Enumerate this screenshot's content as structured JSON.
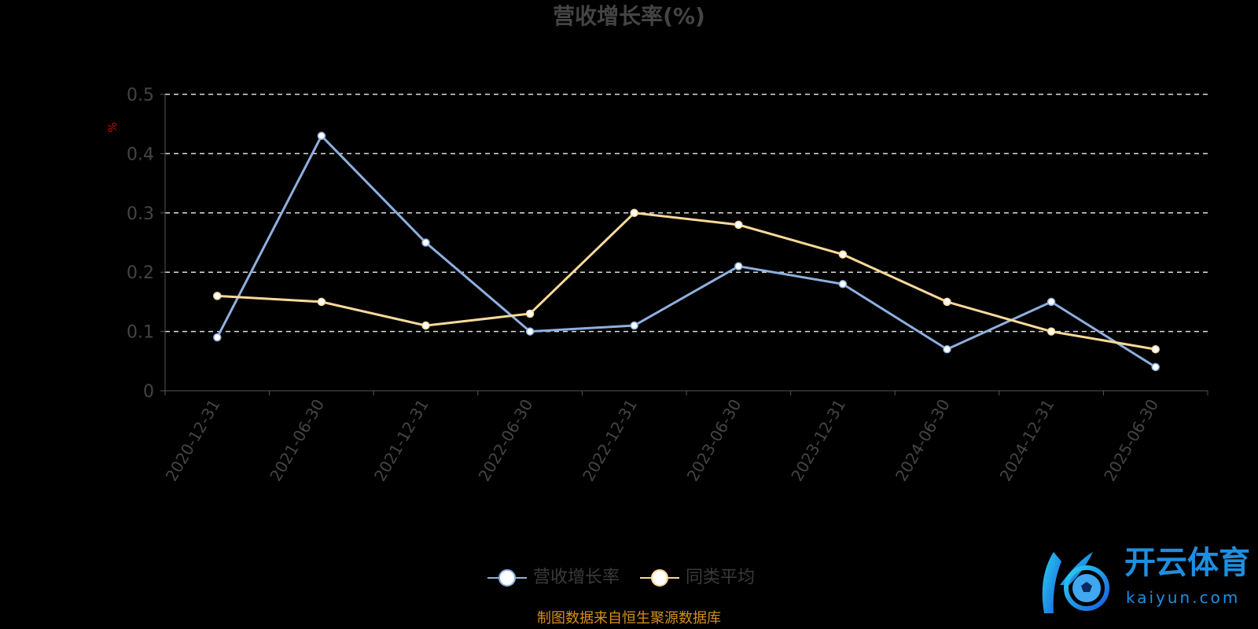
{
  "chart_data": {
    "type": "line",
    "title": "营收增长率(%)",
    "ylabel": "%",
    "xlabel": "",
    "ylim": [
      0,
      0.5
    ],
    "yticks": [
      "0",
      "0.1",
      "0.2",
      "0.3",
      "0.4",
      "0.5"
    ],
    "grid": true,
    "legend_position": "bottom",
    "categories": [
      "2020-12-31",
      "2021-06-30",
      "2021-12-31",
      "2022-06-30",
      "2022-12-31",
      "2023-06-30",
      "2023-12-31",
      "2024-06-30",
      "2024-12-31",
      "2025-06-30"
    ],
    "series": [
      {
        "name": "营收增长率",
        "color": "#8eb0e0",
        "values": [
          0.09,
          0.43,
          0.25,
          0.1,
          0.11,
          0.21,
          0.18,
          0.07,
          0.15,
          0.04
        ]
      },
      {
        "name": "同类平均",
        "color": "#fbd999",
        "values": [
          0.16,
          0.15,
          0.11,
          0.13,
          0.3,
          0.28,
          0.23,
          0.15,
          0.1,
          0.07
        ]
      }
    ]
  },
  "source_note": "制图数据来自恒生聚源数据库",
  "watermark": {
    "cn": "开云体育",
    "en": "kaiyun.com"
  }
}
